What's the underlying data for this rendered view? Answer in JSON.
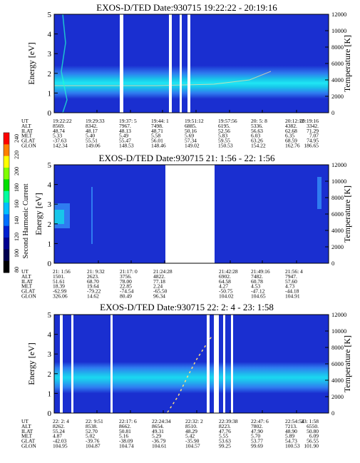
{
  "colorbar": {
    "label": "Second Harmonic Current",
    "ticks": [
      "240",
      "220",
      "200",
      "180",
      "160",
      "140",
      "120",
      "100",
      "80"
    ],
    "colors": [
      "#ff0000",
      "#ff8000",
      "#ffff00",
      "#80ff00",
      "#00e000",
      "#00ffa0",
      "#00c0ff",
      "#0070ff",
      "#0020d0",
      "#000090",
      "#000050",
      "#000000"
    ]
  },
  "chart_data": [
    {
      "type": "heatmap",
      "title": "EXOS-D/TED   Date:930715   19:22:22 - 20:19:16",
      "ylabel": "Energy [eV]",
      "y2label": "Temperature [K]",
      "ylim": [
        0,
        5
      ],
      "y2lim": [
        0,
        12000
      ],
      "yticks": [
        "0",
        "1",
        "2",
        "3",
        "4",
        "5"
      ],
      "y2ticks": [
        "0",
        "2000",
        "4000",
        "6000",
        "8000",
        "10000",
        "12000"
      ],
      "band": {
        "center": 2.4,
        "halfwidth": 0.45,
        "trend": "rising"
      },
      "gaps": [
        0.255,
        0.52,
        0.565,
        0.61
      ],
      "table": {
        "labels": [
          "UT",
          "ALT",
          "ILAT",
          "MLT",
          "GLAT",
          "GLON"
        ],
        "columns": [
          [
            "19:22:22",
            "8569.",
            "48.74",
            "5.33",
            "-37.63",
            "142.34"
          ],
          [
            "19:29:33",
            "8342.",
            "48.17",
            "5.40",
            "55.51",
            "149.06"
          ],
          [
            "19:37: 5",
            "7967.",
            "48.13",
            "5.49",
            "55.47",
            "148.53"
          ],
          [
            "19:44: 1",
            "7498.",
            "48.71",
            "5.58",
            "56.01",
            "148.46"
          ],
          [
            "19:51:12",
            "6885.",
            "50.16",
            "5.69",
            "57.34",
            "149.02"
          ],
          [
            "19:57:56",
            "6195.",
            "52.56",
            "5.83",
            "59.55",
            "150.53"
          ],
          [
            "20: 5: 8",
            "5336.",
            "56.63",
            "6.03",
            "63.26",
            "154.22"
          ],
          [
            "20:12:12",
            "4382.",
            "62.68",
            "6.35",
            "68.59",
            "162.76"
          ],
          [
            "20:19:16",
            "3342.",
            "71.29",
            "7.07",
            "74.95",
            "186.65"
          ]
        ]
      }
    },
    {
      "type": "heatmap",
      "title": "EXOS-D/TED   Date:930715   21: 1:56 - 22: 1:56",
      "ylabel": "Energy [eV]",
      "y2label": "Temperature [K]",
      "ylim": [
        0,
        5
      ],
      "y2lim": [
        0,
        12000
      ],
      "yticks": [
        "0",
        "1",
        "2",
        "3",
        "4",
        "5"
      ],
      "y2ticks": [
        "0",
        "2000",
        "4000",
        "6000",
        "8000",
        "10000",
        "12000"
      ],
      "table": {
        "labels": [
          "UT",
          "ALT",
          "ILAT",
          "MLT",
          "GLAT",
          "GLON"
        ],
        "columns": [
          [
            "21: 1:56",
            "1501.",
            "51.61",
            "18.39",
            "-62.99",
            "326.06"
          ],
          [
            "21: 9:32",
            "2623.",
            "68.70",
            "19.64",
            "-79.22",
            "14.62"
          ],
          [
            "21:17: 0",
            "3756.",
            "78.00",
            "22.85",
            "-74.54",
            "80.49"
          ],
          [
            "21:24:28",
            "4822.",
            "77.18",
            "2.24",
            "-65.50",
            "96.34"
          ],
          [
            "21:42:28",
            "6902.",
            "64.58",
            "4.27",
            "-50.75",
            "104.02"
          ],
          [
            "21:49:16",
            "7482.",
            "60.78",
            "4.53",
            "-47.12",
            "104.65"
          ],
          [
            "21:56: 4",
            "7947.",
            "57.60",
            "4.73",
            "-44.18",
            "104.91"
          ]
        ]
      }
    },
    {
      "type": "heatmap",
      "title": "EXOS-D/TED   Date:930715   22: 2: 4 - 23: 1:58",
      "ylabel": "Energy [eV]",
      "y2label": "Temperature [K]",
      "ylim": [
        0,
        5
      ],
      "y2lim": [
        0,
        12000
      ],
      "yticks": [
        "0",
        "1",
        "2",
        "3",
        "4",
        "5"
      ],
      "y2ticks": [
        "0",
        "2000",
        "4000",
        "6000",
        "8000",
        "10000",
        "12000"
      ],
      "table": {
        "labels": [
          "UT",
          "ALT",
          "ILAT",
          "MLT",
          "GLAT",
          "GLON"
        ],
        "columns": [
          [
            "22: 2: 4",
            "8262.",
            "55.24",
            "4.87",
            "-42.03",
            "104.95"
          ],
          [
            "22: 9:51",
            "8538.",
            "52.70",
            "5.02",
            "-39.76",
            "104.87"
          ],
          [
            "22:17: 6",
            "8662.",
            "50.81",
            "5.16",
            "-38.09",
            "104.74"
          ],
          [
            "22:24:34",
            "8654.",
            "49.31",
            "5.29",
            "-36.79",
            "104.61"
          ],
          [
            "22:32: 2",
            "8510.",
            "48.29",
            "5.42",
            "-35.90",
            "104.57"
          ],
          [
            "22:39:38",
            "8223.",
            "47.76",
            "5.55",
            "53.63",
            "99.25"
          ],
          [
            "22:47: 6",
            "7802.",
            "47.90",
            "5.70",
            "53.77",
            "99.69"
          ],
          [
            "22:54:54",
            "7213.",
            "48.90",
            "5.89",
            "54.73",
            "100.53"
          ],
          [
            "23: 1:58",
            "6550.",
            "50.80",
            "6.09",
            "56.55",
            "101.90"
          ]
        ]
      }
    }
  ]
}
